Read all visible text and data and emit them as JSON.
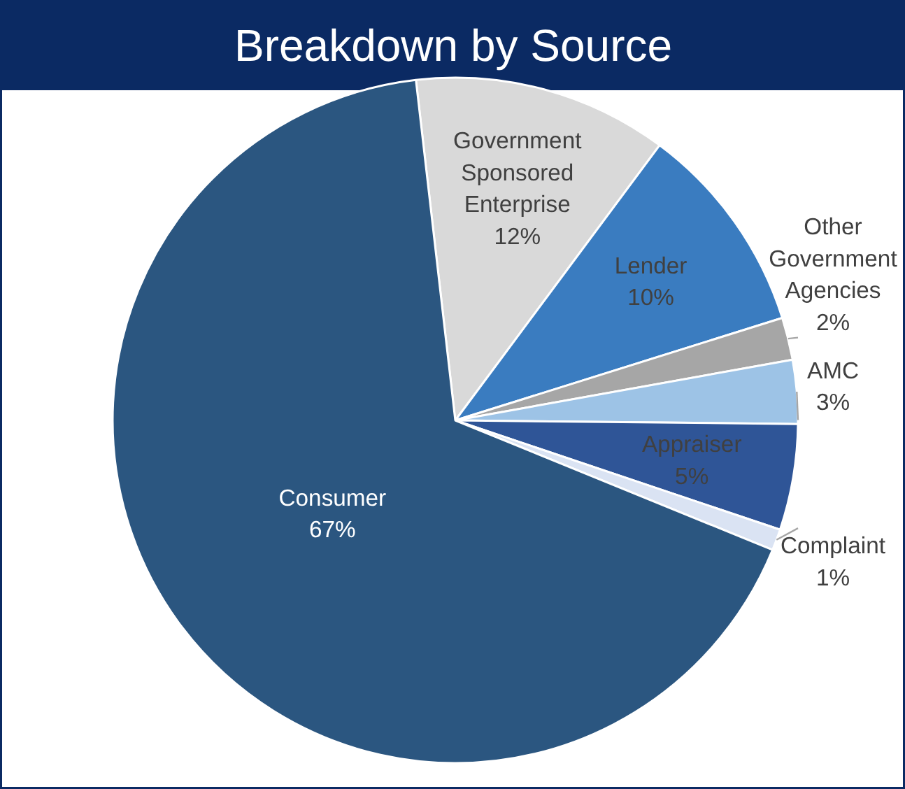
{
  "chart_data": {
    "type": "pie",
    "title": "Breakdown by Source",
    "categories": [
      "Government Sponsored Enterprise",
      "Lender",
      "Other Government Agencies",
      "AMC",
      "Appraiser",
      "Complaint",
      "Consumer"
    ],
    "values": [
      12,
      10,
      2,
      3,
      5,
      1,
      67
    ],
    "value_labels": [
      "12%",
      "10%",
      "2%",
      "3%",
      "5%",
      "1%",
      "67%"
    ],
    "colors": [
      "#d9d9d9",
      "#3a7cc0",
      "#a6a6a6",
      "#9dc3e6",
      "#2f5597",
      "#dae3f3",
      "#2b5680"
    ]
  }
}
